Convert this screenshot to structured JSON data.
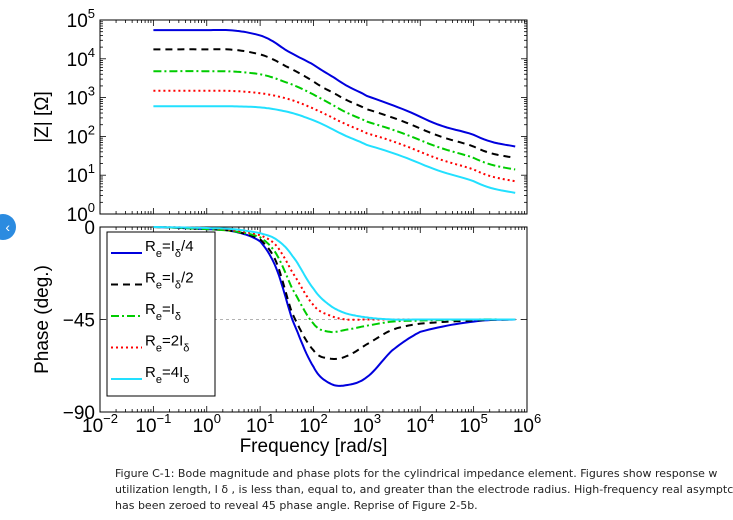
{
  "nav": {
    "icon": "chevron-left-icon",
    "glyph": "‹"
  },
  "chart_data": {
    "type": "line",
    "x_scale": "log",
    "xlim": [
      0.01,
      1000000
    ],
    "x_ticks": [
      {
        "base": "10",
        "exp": "−2"
      },
      {
        "base": "10",
        "exp": "−1"
      },
      {
        "base": "10",
        "exp": "0"
      },
      {
        "base": "10",
        "exp": "1"
      },
      {
        "base": "10",
        "exp": "2"
      },
      {
        "base": "10",
        "exp": "3"
      },
      {
        "base": "10",
        "exp": "4"
      },
      {
        "base": "10",
        "exp": "5"
      },
      {
        "base": "10",
        "exp": "6"
      }
    ],
    "xlabel": "Frequency [rad/s]",
    "panels": [
      {
        "name": "magnitude",
        "ylabel": "|Z| [Ω]",
        "y_scale": "log",
        "ylim": [
          1,
          100000
        ],
        "y_ticks": [
          {
            "base": "10",
            "exp": "0"
          },
          {
            "base": "10",
            "exp": "1"
          },
          {
            "base": "10",
            "exp": "2"
          },
          {
            "base": "10",
            "exp": "3"
          },
          {
            "base": "10",
            "exp": "4"
          },
          {
            "base": "10",
            "exp": "5"
          }
        ],
        "series": [
          {
            "name": "Re=Iδ/4",
            "x": [
              0.1,
              1,
              3,
              10,
              30,
              100,
              300,
              1000,
              10000,
              100000,
              600000
            ],
            "y": [
              55000,
              55000,
              54000,
              40000,
              17000,
              7000,
              2700,
              1100,
              320,
              110,
              55
            ]
          },
          {
            "name": "Re=Iδ/2",
            "x": [
              0.1,
              1,
              3,
              10,
              30,
              100,
              300,
              1000,
              10000,
              100000,
              600000
            ],
            "y": [
              17500,
              17500,
              17200,
              13000,
              6500,
              2600,
              1100,
              500,
              160,
              55,
              28
            ]
          },
          {
            "name": "Re=Iδ",
            "x": [
              0.1,
              1,
              3,
              10,
              30,
              100,
              300,
              1000,
              10000,
              100000,
              600000
            ],
            "y": [
              4800,
              4800,
              4700,
              4000,
              2500,
              1200,
              520,
              240,
              80,
              28,
              14
            ]
          },
          {
            "name": "Re=2Iδ",
            "x": [
              0.1,
              1,
              3,
              10,
              30,
              100,
              300,
              1000,
              10000,
              100000,
              600000
            ],
            "y": [
              1500,
              1500,
              1480,
              1300,
              960,
              520,
              250,
              120,
              40,
              14,
              7
            ]
          },
          {
            "name": "Re=4Iδ",
            "x": [
              0.1,
              1,
              3,
              10,
              30,
              100,
              300,
              1000,
              10000,
              100000,
              600000
            ],
            "y": [
              600,
              600,
              595,
              560,
              440,
              260,
              125,
              60,
              20,
              7,
              3.5
            ]
          }
        ]
      },
      {
        "name": "phase",
        "ylabel": "Phase (deg.)",
        "ylim": [
          -90,
          0
        ],
        "y_ticks": [
          "0",
          "−45",
          "−90"
        ],
        "reference_line": -45,
        "series": [
          {
            "name": "Re=Iδ/4",
            "x": [
              0.1,
              1,
              3,
              10,
              20,
              40,
              100,
              200,
              400,
              1000,
              3000,
              10000,
              100000,
              600000
            ],
            "y": [
              0,
              -1,
              -2,
              -7,
              -20,
              -45,
              -68,
              -76,
              -77,
              -73,
              -60,
              -51,
              -46,
              -45
            ]
          },
          {
            "name": "Re=Iδ/2",
            "x": [
              0.1,
              1,
              3,
              10,
              20,
              40,
              100,
              200,
              400,
              1000,
              3000,
              10000,
              100000,
              600000
            ],
            "y": [
              0,
              -1,
              -2,
              -6,
              -17,
              -42,
              -60,
              -64,
              -63,
              -57,
              -50,
              -47,
              -45.5,
              -45
            ]
          },
          {
            "name": "Re=Iδ",
            "x": [
              0.1,
              1,
              3,
              10,
              20,
              40,
              100,
              200,
              400,
              1000,
              3000,
              10000,
              100000,
              600000
            ],
            "y": [
              0,
              -1,
              -2,
              -5,
              -13,
              -30,
              -47,
              -51,
              -50,
              -48,
              -46,
              -45.5,
              -45,
              -45
            ]
          },
          {
            "name": "Re=2Iδ",
            "x": [
              0.1,
              1,
              3,
              10,
              20,
              40,
              100,
              200,
              400,
              1000,
              3000,
              10000,
              100000,
              600000
            ],
            "y": [
              0,
              -0.5,
              -1.5,
              -4,
              -9,
              -22,
              -38,
              -43,
              -45,
              -45,
              -45,
              -45,
              -45,
              -45
            ]
          },
          {
            "name": "Re=4Iδ",
            "x": [
              0.1,
              1,
              3,
              10,
              20,
              40,
              100,
              200,
              400,
              1000,
              3000,
              10000,
              100000,
              600000
            ],
            "y": [
              0,
              -0.5,
              -1,
              -3,
              -6,
              -14,
              -30,
              -38,
              -42,
              -44,
              -45,
              -45,
              -45,
              -45
            ]
          }
        ]
      }
    ],
    "legend": {
      "placement": "lower-left of phase panel",
      "entries": [
        {
          "base": "R",
          "sub1": "e",
          "mid": "=I",
          "sub2": "δ",
          "suffix": "/4"
        },
        {
          "base": "R",
          "sub1": "e",
          "mid": "=I",
          "sub2": "δ",
          "suffix": "/2"
        },
        {
          "base": "R",
          "sub1": "e",
          "mid": "=I",
          "sub2": "δ",
          "suffix": ""
        },
        {
          "base": "R",
          "sub1": "e",
          "mid": "=2I",
          "sub2": "δ",
          "suffix": ""
        },
        {
          "base": "R",
          "sub1": "e",
          "mid": "=4I",
          "sub2": "δ",
          "suffix": ""
        }
      ]
    },
    "series_styles": [
      {
        "color": "#0000dd",
        "dash": "none"
      },
      {
        "color": "#000000",
        "dash": "7,5"
      },
      {
        "color": "#00cc00",
        "dash": "8,3,2,3"
      },
      {
        "color": "#ff0000",
        "dash": "2,3"
      },
      {
        "color": "#22e0ff",
        "dash": "none"
      }
    ]
  },
  "caption": {
    "lines": [
      "Figure C-1: Bode magnitude and phase plots for the cylindrical impedance element. Figures show response w",
      "utilization length, I δ , is less than, equal to, and greater than the electrode radius. High-frequency real asymptc",
      "has been zeroed to reveal 45 phase angle. Reprise of Figure 2-5b."
    ]
  }
}
